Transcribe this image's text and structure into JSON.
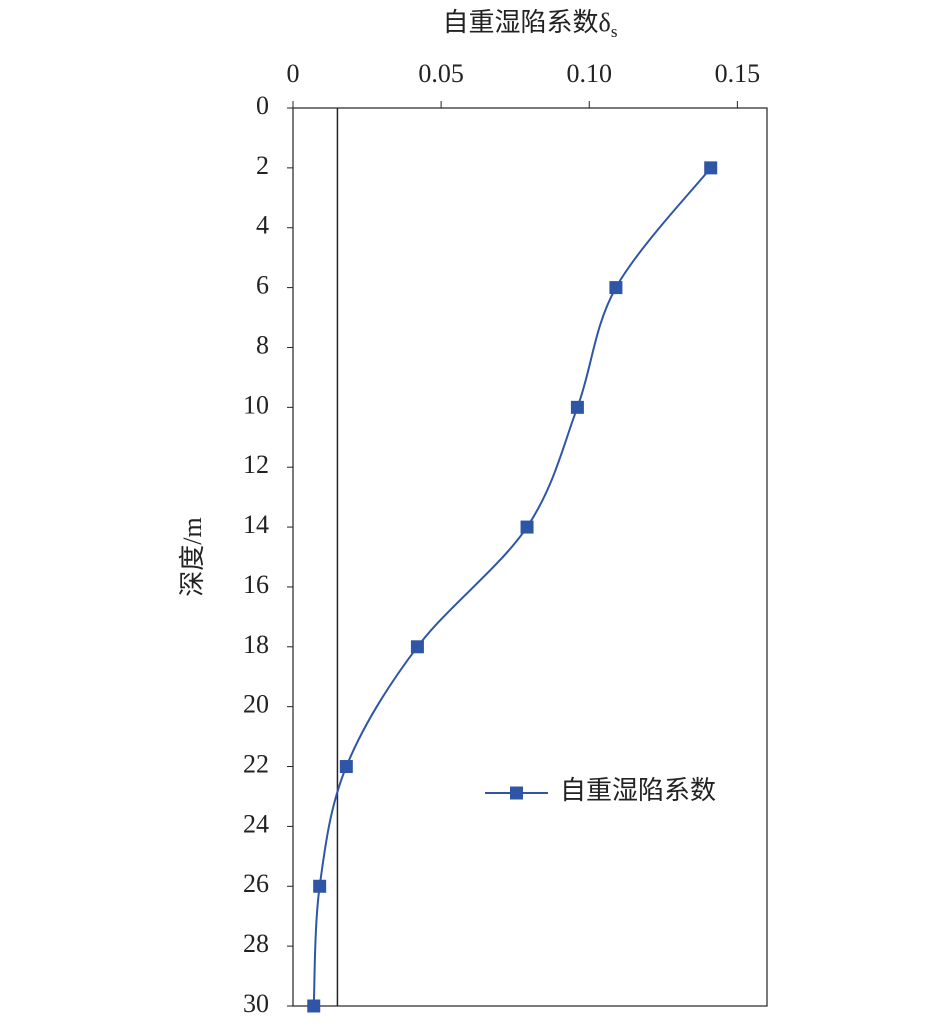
{
  "chart_data": {
    "type": "line",
    "x_label": {
      "text": "自重湿陷系数δ",
      "subscript": "s"
    },
    "y_label": "深度/m",
    "x": [
      2,
      6,
      10,
      14,
      18,
      22,
      26,
      30
    ],
    "series": [
      {
        "name": "自重湿陷系数",
        "color": "#2f56a6",
        "values": [
          0.141,
          0.109,
          0.096,
          0.079,
          0.042,
          0.018,
          0.009,
          0.007
        ]
      }
    ],
    "reference_x": 0.015,
    "xlim": [
      0,
      0.16
    ],
    "xticks": [
      0,
      0.05,
      {
        "value": 0.1,
        "label": "0.10"
      },
      0.15
    ],
    "ylim": [
      0,
      30
    ],
    "yticks": [
      0,
      2,
      4,
      6,
      8,
      10,
      12,
      14,
      16,
      18,
      20,
      22,
      24,
      26,
      28,
      30
    ],
    "y_inverted": true,
    "smooth": true,
    "legend": "right"
  }
}
